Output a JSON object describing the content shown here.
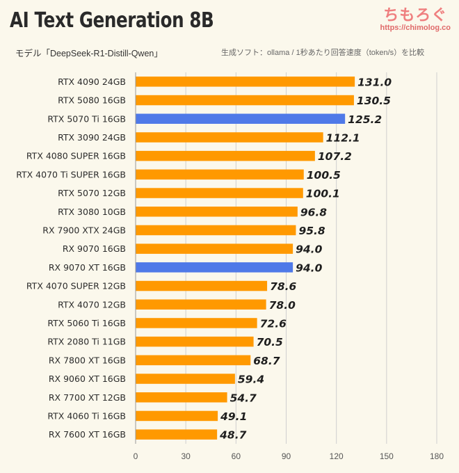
{
  "header": {
    "title": "AI Text Generation 8B",
    "subtitle": "モデル「DeepSeek-R1-Distill-Qwen」",
    "note": "生成ソフト：ollama / 1秒あたり回答速度（token/s）を比較"
  },
  "brand": {
    "name": "ちもろぐ",
    "url": "https://chimolog.co"
  },
  "colors": {
    "default_bar": "#ff9900",
    "highlight_bar": "#4f79e8",
    "grid": "#cfcfcf",
    "background": "#fbf8ec"
  },
  "chart_data": {
    "type": "bar",
    "orientation": "horizontal",
    "title": "AI Text Generation 8B",
    "xlabel": "",
    "ylabel": "",
    "xlim": [
      0,
      180
    ],
    "xticks": [
      0,
      30,
      60,
      90,
      120,
      150,
      180
    ],
    "grid": true,
    "categories": [
      "RTX 4090 24GB",
      "RTX 5080 16GB",
      "RTX 5070 Ti 16GB",
      "RTX 3090 24GB",
      "RTX 4080 SUPER 16GB",
      "RTX 4070 Ti SUPER 16GB",
      "RTX 5070 12GB",
      "RTX 3080 10GB",
      "RX 7900 XTX 24GB",
      "RX 9070 16GB",
      "RX 9070 XT 16GB",
      "RTX 4070 SUPER 12GB",
      "RTX 4070 12GB",
      "RTX 5060 Ti 16GB",
      "RTX 2080 Ti 11GB",
      "RX 7800 XT 16GB",
      "RX 9060 XT 16GB",
      "RX 7700 XT 12GB",
      "RTX 4060 Ti 16GB",
      "RX 7600 XT 16GB"
    ],
    "values": [
      131.0,
      130.5,
      125.2,
      112.1,
      107.2,
      100.5,
      100.1,
      96.8,
      95.8,
      94.0,
      94.0,
      78.6,
      78.0,
      72.6,
      70.5,
      68.7,
      59.4,
      54.7,
      49.1,
      48.7
    ],
    "value_labels": [
      "131.0",
      "130.5",
      "125.2",
      "112.1",
      "107.2",
      "100.5",
      "100.1",
      "96.8",
      "95.8",
      "94.0",
      "94.0",
      "78.6",
      "78.0",
      "72.6",
      "70.5",
      "68.7",
      "59.4",
      "54.7",
      "49.1",
      "48.7"
    ],
    "highlighted": [
      "RTX 5070 Ti 16GB",
      "RX 9070 XT 16GB"
    ]
  }
}
